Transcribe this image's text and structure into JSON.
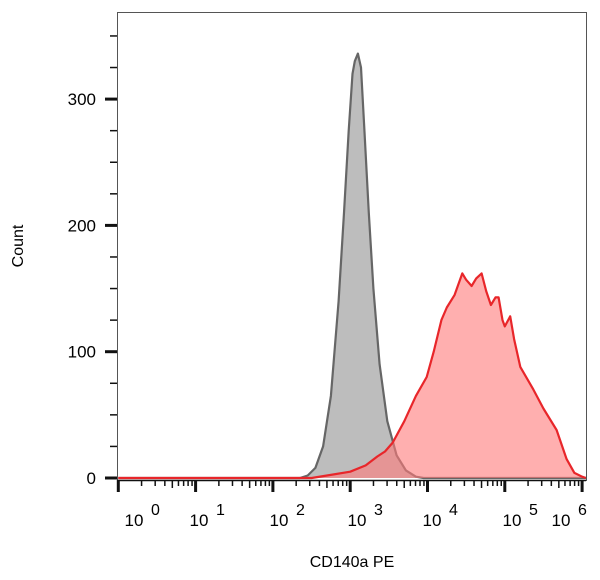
{
  "chart_data": {
    "type": "area",
    "title": "",
    "xlabel": "CD140a PE",
    "ylabel": "Count",
    "x_scale": "log",
    "xlim_log10": [
      0,
      6.05
    ],
    "ylim": [
      0,
      369
    ],
    "x_tick_labels": [
      {
        "base": "10",
        "exp": "0"
      },
      {
        "base": "10",
        "exp": "1"
      },
      {
        "base": "10",
        "exp": "2"
      },
      {
        "base": "10",
        "exp": "3"
      },
      {
        "base": "10",
        "exp": "4"
      },
      {
        "base": "10",
        "exp": "5"
      },
      {
        "base": "10",
        "exp": "6"
      }
    ],
    "y_ticks": [
      0,
      100,
      200,
      300
    ],
    "grid": false,
    "legend": "none",
    "series": [
      {
        "color": "#666666",
        "fill": "#bdbdbd",
        "points_log10x_count": [
          [
            2.35,
            0
          ],
          [
            2.45,
            2
          ],
          [
            2.55,
            8
          ],
          [
            2.65,
            25
          ],
          [
            2.75,
            65
          ],
          [
            2.85,
            140
          ],
          [
            2.92,
            210
          ],
          [
            2.98,
            275
          ],
          [
            3.03,
            320
          ],
          [
            3.06,
            330
          ],
          [
            3.1,
            336
          ],
          [
            3.14,
            325
          ],
          [
            3.18,
            280
          ],
          [
            3.24,
            210
          ],
          [
            3.3,
            150
          ],
          [
            3.38,
            90
          ],
          [
            3.48,
            45
          ],
          [
            3.6,
            18
          ],
          [
            3.72,
            6
          ],
          [
            3.85,
            1
          ],
          [
            3.95,
            0
          ]
        ]
      },
      {
        "color": "#e8262a",
        "fill": "#ff7a7a",
        "points_log10x_count": [
          [
            2.5,
            0
          ],
          [
            2.7,
            2
          ],
          [
            3.0,
            5
          ],
          [
            3.2,
            10
          ],
          [
            3.35,
            17
          ],
          [
            3.45,
            21
          ],
          [
            3.55,
            28
          ],
          [
            3.7,
            45
          ],
          [
            3.85,
            65
          ],
          [
            3.99,
            80
          ],
          [
            4.08,
            100
          ],
          [
            4.18,
            125
          ],
          [
            4.25,
            135
          ],
          [
            4.35,
            145
          ],
          [
            4.45,
            162
          ],
          [
            4.5,
            157
          ],
          [
            4.57,
            152
          ],
          [
            4.63,
            158
          ],
          [
            4.7,
            162
          ],
          [
            4.76,
            148
          ],
          [
            4.82,
            137
          ],
          [
            4.88,
            143
          ],
          [
            4.92,
            143
          ],
          [
            4.97,
            125
          ],
          [
            5.0,
            120
          ],
          [
            5.07,
            128
          ],
          [
            5.12,
            110
          ],
          [
            5.2,
            88
          ],
          [
            5.37,
            70
          ],
          [
            5.5,
            55
          ],
          [
            5.67,
            38
          ],
          [
            5.8,
            15
          ],
          [
            5.9,
            4
          ],
          [
            6.0,
            1
          ]
        ]
      }
    ]
  }
}
